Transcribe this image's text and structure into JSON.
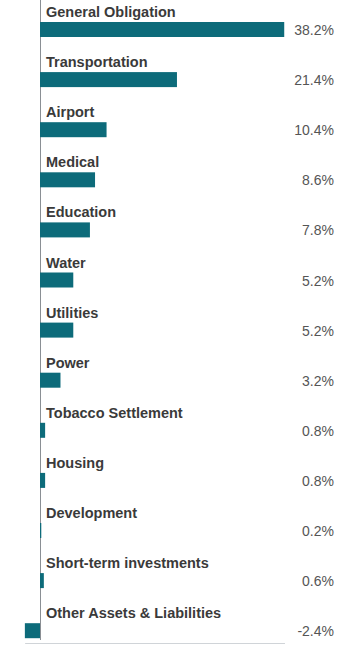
{
  "chart_data": {
    "type": "bar",
    "orientation": "horizontal",
    "categories": [
      "General Obligation",
      "Transportation",
      "Airport",
      "Medical",
      "Education",
      "Water",
      "Utilities",
      "Power",
      "Tobacco Settlement",
      "Housing",
      "Development",
      "Short-term investments",
      "Other Assets & Liabilities"
    ],
    "values": [
      38.2,
      21.4,
      10.4,
      8.6,
      7.8,
      5.2,
      5.2,
      3.2,
      0.8,
      0.8,
      0.2,
      0.6,
      -2.4
    ],
    "value_labels": [
      "38.2%",
      "21.4%",
      "10.4%",
      "8.6%",
      "7.8%",
      "5.2%",
      "5.2%",
      "3.2%",
      "0.8%",
      "0.8%",
      "0.2%",
      "0.6%",
      "-2.4%"
    ],
    "color": "#0d6b7a",
    "xlim": [
      -2.4,
      38.2
    ],
    "xticks": [
      0
    ],
    "data_labels": true,
    "tick_labels": false,
    "grid": false
  }
}
